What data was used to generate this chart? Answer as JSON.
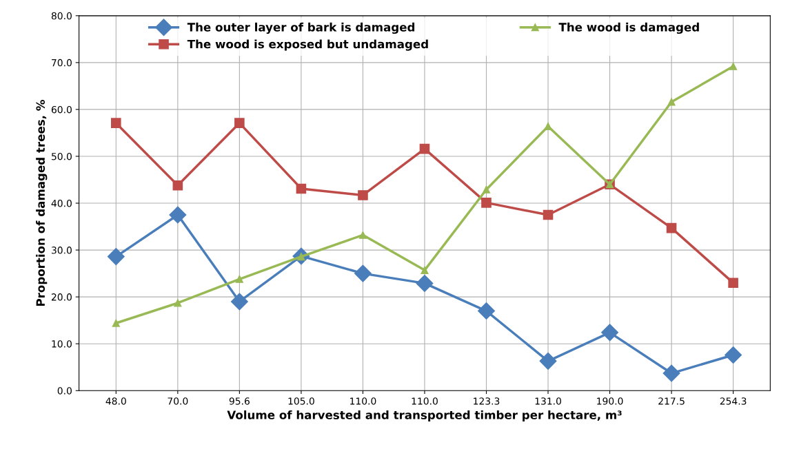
{
  "chart_data": {
    "type": "line",
    "xlabel": "Volume of harvested and transported timber per hectare, m³",
    "ylabel": "Proportion of damaged trees, %",
    "categories": [
      "48.0",
      "70.0",
      "95.6",
      "105.0",
      "110.0",
      "110.0",
      "123.3",
      "131.0",
      "190.0",
      "217.5",
      "254.3"
    ],
    "series": [
      {
        "name": "The outer layer of bark is damaged",
        "color": "#4a7ebb",
        "marker": "diamond",
        "values": [
          28.6,
          37.5,
          19.0,
          28.7,
          25.0,
          22.9,
          17.0,
          6.3,
          12.4,
          3.7,
          7.6
        ]
      },
      {
        "name": "The wood is exposed but undamaged",
        "color": "#be4b48",
        "marker": "square",
        "values": [
          57.1,
          43.8,
          57.1,
          43.1,
          41.7,
          51.6,
          40.1,
          37.5,
          44.0,
          34.7,
          23.0
        ]
      },
      {
        "name": "The wood is damaged",
        "color": "#98b954",
        "marker": "triangle",
        "values": [
          14.4,
          18.7,
          23.8,
          28.6,
          33.2,
          25.7,
          42.9,
          56.4,
          44.0,
          61.6,
          69.2
        ]
      }
    ],
    "ylim": [
      0,
      80
    ],
    "yticks": [
      {
        "value": 0,
        "label": "0.0"
      },
      {
        "value": 10,
        "label": "10.0"
      },
      {
        "value": 20,
        "label": "20.0"
      },
      {
        "value": 30,
        "label": "30.0"
      },
      {
        "value": 40,
        "label": "40.0"
      },
      {
        "value": 50,
        "label": "50.0"
      },
      {
        "value": 60,
        "label": "60.0"
      },
      {
        "value": 70,
        "label": "70.0"
      },
      {
        "value": 80,
        "label": "80.0"
      }
    ],
    "grid": true,
    "legend": "top",
    "line_style": "solid"
  }
}
